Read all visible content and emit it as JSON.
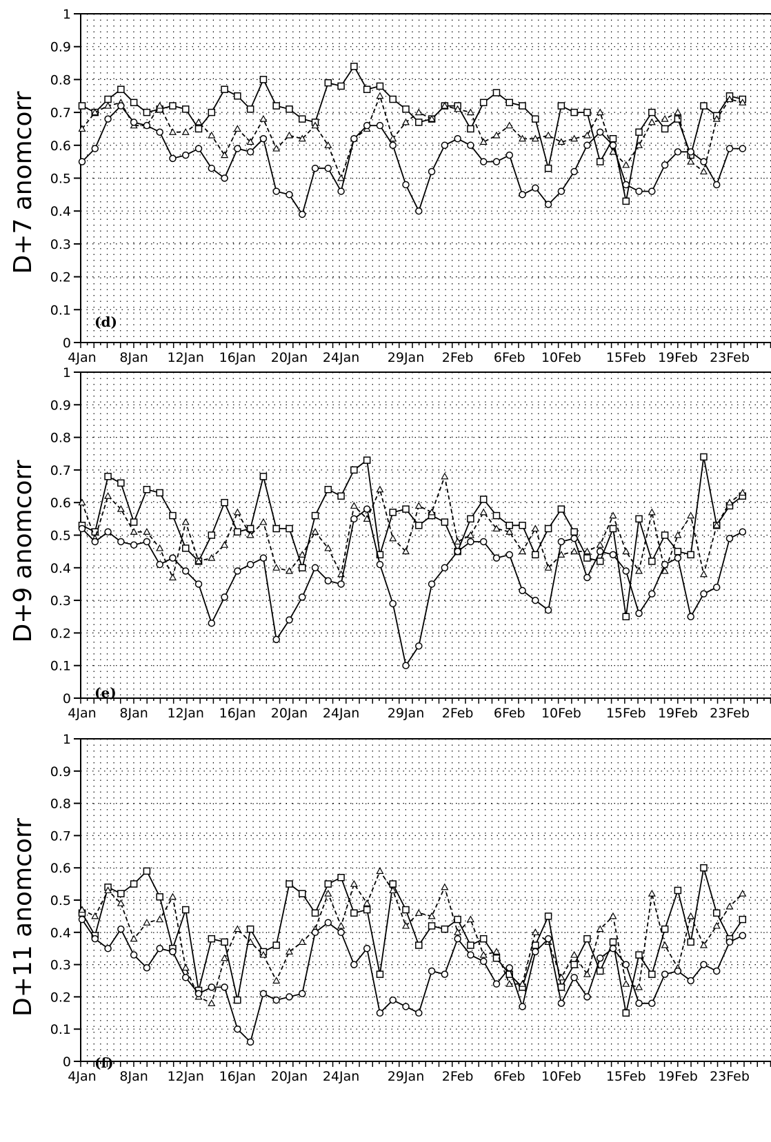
{
  "figure": {
    "x_tick_labels": [
      "4Jan",
      "8Jan",
      "12Jan",
      "16Jan",
      "20Jan",
      "24Jan",
      "29Jan",
      "2Feb",
      "6Feb",
      "10Feb",
      "15Feb",
      "19Feb",
      "23Feb"
    ],
    "y_tick_labels": [
      "0",
      "0.1",
      "0.2",
      "0.3",
      "0.4",
      "0.5",
      "0.6",
      "0.7",
      "0.8",
      "0.9",
      "1"
    ]
  },
  "chart_data": [
    {
      "type": "line",
      "panel_label": "(d)",
      "ylabel": "D+7 anomcorr",
      "xlabel": "",
      "ylim": [
        0,
        1
      ],
      "grid": true,
      "x_index_range": [
        0,
        56
      ],
      "categories_ticks": [
        "4Jan",
        "8Jan",
        "12Jan",
        "16Jan",
        "20Jan",
        "24Jan",
        "29Jan",
        "2Feb",
        "6Feb",
        "10Feb",
        "15Feb",
        "19Feb",
        "23Feb"
      ],
      "series": [
        {
          "marker": "square",
          "style": "solid",
          "values": [
            0.72,
            0.7,
            0.74,
            0.77,
            0.73,
            0.7,
            0.71,
            0.72,
            0.71,
            0.65,
            0.7,
            0.77,
            0.75,
            0.71,
            0.8,
            0.72,
            0.71,
            0.68,
            0.67,
            0.79,
            0.78,
            0.84,
            0.77,
            0.78,
            0.74,
            0.71,
            0.67,
            0.68,
            0.72,
            0.72,
            0.65,
            0.73,
            0.76,
            0.73,
            0.72,
            0.68,
            0.53,
            0.72,
            0.7,
            0.7,
            0.55,
            0.62,
            0.43,
            0.64,
            0.7,
            0.65,
            0.68,
            0.57,
            0.72,
            0.69,
            0.75,
            0.74
          ]
        },
        {
          "marker": "triangle",
          "style": "dashed",
          "values": [
            0.65,
            0.7,
            0.72,
            0.73,
            0.66,
            0.66,
            0.72,
            0.64,
            0.64,
            0.67,
            0.63,
            0.57,
            0.65,
            0.61,
            0.68,
            0.59,
            0.63,
            0.62,
            0.66,
            0.6,
            0.5,
            0.62,
            0.65,
            0.75,
            0.62,
            0.67,
            0.7,
            0.68,
            0.72,
            0.71,
            0.7,
            0.61,
            0.63,
            0.66,
            0.62,
            0.62,
            0.63,
            0.61,
            0.62,
            0.63,
            0.7,
            0.58,
            0.54,
            0.6,
            0.67,
            0.68,
            0.7,
            0.55,
            0.52,
            0.68,
            0.74,
            0.73
          ]
        },
        {
          "marker": "circle",
          "style": "solid",
          "values": [
            0.55,
            0.59,
            0.68,
            0.72,
            0.67,
            0.66,
            0.64,
            0.56,
            0.57,
            0.59,
            0.53,
            0.5,
            0.59,
            0.58,
            0.62,
            0.46,
            0.45,
            0.39,
            0.53,
            0.53,
            0.46,
            0.62,
            0.66,
            0.66,
            0.6,
            0.48,
            0.4,
            0.52,
            0.6,
            0.62,
            0.6,
            0.55,
            0.55,
            0.57,
            0.45,
            0.47,
            0.42,
            0.46,
            0.52,
            0.6,
            0.64,
            0.6,
            0.48,
            0.46,
            0.46,
            0.54,
            0.58,
            0.58,
            0.55,
            0.48,
            0.59,
            0.59
          ]
        }
      ]
    },
    {
      "type": "line",
      "panel_label": "(e)",
      "ylabel": "D+9 anomcorr",
      "xlabel": "",
      "ylim": [
        0,
        1
      ],
      "grid": true,
      "x_index_range": [
        0,
        56
      ],
      "categories_ticks": [
        "4Jan",
        "8Jan",
        "12Jan",
        "16Jan",
        "20Jan",
        "24Jan",
        "29Jan",
        "2Feb",
        "6Feb",
        "10Feb",
        "15Feb",
        "19Feb",
        "23Feb"
      ],
      "series": [
        {
          "marker": "square",
          "style": "solid",
          "values": [
            0.53,
            0.51,
            0.68,
            0.66,
            0.54,
            0.64,
            0.63,
            0.56,
            0.46,
            0.42,
            0.5,
            0.6,
            0.51,
            0.52,
            0.68,
            0.52,
            0.52,
            0.4,
            0.56,
            0.64,
            0.62,
            0.7,
            0.73,
            0.44,
            0.57,
            0.58,
            0.53,
            0.56,
            0.54,
            0.45,
            0.55,
            0.61,
            0.56,
            0.53,
            0.53,
            0.44,
            0.52,
            0.58,
            0.51,
            0.43,
            0.42,
            0.52,
            0.25,
            0.55,
            0.42,
            0.5,
            0.45,
            0.44,
            0.74,
            0.53,
            0.59,
            0.62
          ]
        },
        {
          "marker": "triangle",
          "style": "dashed",
          "values": [
            0.6,
            0.49,
            0.62,
            0.58,
            0.51,
            0.51,
            0.46,
            0.37,
            0.54,
            0.42,
            0.43,
            0.47,
            0.57,
            0.5,
            0.54,
            0.4,
            0.39,
            0.44,
            0.51,
            0.46,
            0.38,
            0.59,
            0.55,
            0.64,
            0.49,
            0.45,
            0.59,
            0.57,
            0.68,
            0.48,
            0.5,
            0.57,
            0.52,
            0.51,
            0.45,
            0.52,
            0.4,
            0.44,
            0.45,
            0.45,
            0.47,
            0.56,
            0.45,
            0.39,
            0.57,
            0.39,
            0.5,
            0.56,
            0.38,
            0.53,
            0.6,
            0.63
          ]
        },
        {
          "marker": "circle",
          "style": "solid",
          "values": [
            0.52,
            0.48,
            0.51,
            0.48,
            0.47,
            0.48,
            0.41,
            0.43,
            0.39,
            0.35,
            0.23,
            0.31,
            0.39,
            0.41,
            0.43,
            0.18,
            0.24,
            0.31,
            0.4,
            0.36,
            0.35,
            0.55,
            0.58,
            0.41,
            0.29,
            0.1,
            0.16,
            0.35,
            0.4,
            0.45,
            0.48,
            0.48,
            0.43,
            0.44,
            0.33,
            0.3,
            0.27,
            0.48,
            0.49,
            0.37,
            0.45,
            0.44,
            0.39,
            0.26,
            0.32,
            0.41,
            0.43,
            0.25,
            0.32,
            0.34,
            0.49,
            0.51
          ]
        }
      ]
    },
    {
      "type": "line",
      "panel_label": "(f)",
      "ylabel": "D+11 anomcorr",
      "xlabel": "",
      "ylim": [
        0,
        1
      ],
      "grid": true,
      "x_index_range": [
        0,
        56
      ],
      "categories_ticks": [
        "4Jan",
        "8Jan",
        "12Jan",
        "16Jan",
        "20Jan",
        "24Jan",
        "29Jan",
        "2Feb",
        "6Feb",
        "10Feb",
        "15Feb",
        "19Feb",
        "23Feb"
      ],
      "series": [
        {
          "marker": "square",
          "style": "solid",
          "values": [
            0.46,
            0.39,
            0.54,
            0.52,
            0.55,
            0.59,
            0.51,
            0.35,
            0.47,
            0.22,
            0.38,
            0.37,
            0.19,
            0.41,
            0.34,
            0.36,
            0.55,
            0.52,
            0.46,
            0.55,
            0.57,
            0.46,
            0.47,
            0.27,
            0.55,
            0.47,
            0.36,
            0.42,
            0.41,
            0.44,
            0.36,
            0.38,
            0.32,
            0.27,
            0.23,
            0.36,
            0.45,
            0.23,
            0.3,
            0.38,
            0.28,
            0.37,
            0.15,
            0.33,
            0.27,
            0.41,
            0.53,
            0.37,
            0.6,
            0.46,
            0.38,
            0.44
          ]
        },
        {
          "marker": "triangle",
          "style": "dashed",
          "values": [
            0.47,
            0.45,
            0.53,
            0.49,
            0.38,
            0.43,
            0.44,
            0.51,
            0.29,
            0.2,
            0.18,
            0.32,
            0.41,
            0.37,
            0.33,
            0.25,
            0.34,
            0.37,
            0.41,
            0.52,
            0.42,
            0.55,
            0.49,
            0.59,
            0.53,
            0.42,
            0.46,
            0.45,
            0.54,
            0.4,
            0.44,
            0.33,
            0.34,
            0.24,
            0.24,
            0.4,
            0.37,
            0.26,
            0.33,
            0.27,
            0.41,
            0.45,
            0.24,
            0.23,
            0.52,
            0.36,
            0.29,
            0.45,
            0.36,
            0.42,
            0.48,
            0.52
          ]
        },
        {
          "marker": "circle",
          "style": "solid",
          "values": [
            0.44,
            0.38,
            0.35,
            0.41,
            0.33,
            0.29,
            0.35,
            0.34,
            0.26,
            0.21,
            0.23,
            0.23,
            0.1,
            0.06,
            0.21,
            0.19,
            0.2,
            0.21,
            0.4,
            0.43,
            0.4,
            0.3,
            0.35,
            0.15,
            0.19,
            0.17,
            0.15,
            0.28,
            0.27,
            0.38,
            0.33,
            0.31,
            0.24,
            0.29,
            0.17,
            0.34,
            0.38,
            0.18,
            0.26,
            0.2,
            0.32,
            0.35,
            0.3,
            0.18,
            0.18,
            0.27,
            0.28,
            0.25,
            0.3,
            0.28,
            0.37,
            0.39
          ]
        }
      ]
    }
  ]
}
